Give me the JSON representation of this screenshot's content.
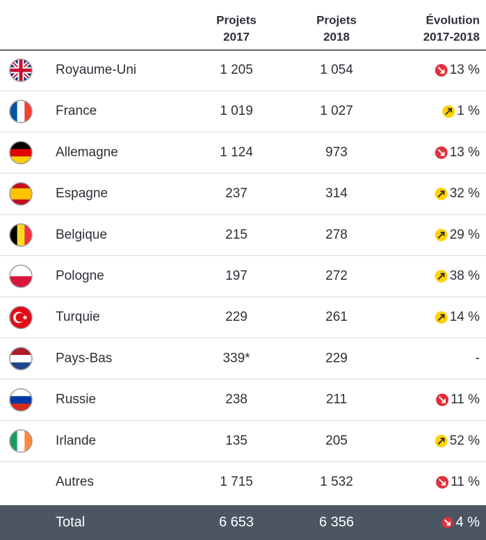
{
  "table": {
    "header": [
      [
        "Projets",
        "2017"
      ],
      [
        "Projets",
        "2018"
      ],
      [
        "Évolution",
        "2017-2018"
      ]
    ],
    "rows": [
      [
        "Royaume-Uni",
        "1 205",
        "1 054",
        "13 %"
      ],
      [
        "France",
        "1 019",
        "1 027",
        "1 %"
      ],
      [
        "Allemagne",
        "1 124",
        "973",
        "13 %"
      ],
      [
        "Espagne",
        "237",
        "314",
        "32 %"
      ],
      [
        "Belgique",
        "215",
        "278",
        "29 %"
      ],
      [
        "Pologne",
        "197",
        "272",
        "38 %"
      ],
      [
        "Turquie",
        "229",
        "261",
        "14 %"
      ],
      [
        "Pays-Bas",
        "339*",
        "229",
        "-"
      ],
      [
        "Russie",
        "238",
        "211",
        "11 %"
      ],
      [
        "Irlande",
        "135",
        "205",
        "52 %"
      ],
      [
        "Autres",
        "1 715",
        "1 532",
        "11 %"
      ]
    ],
    "total": [
      "Total",
      "6 653",
      "6 356",
      "4 %"
    ]
  }
}
